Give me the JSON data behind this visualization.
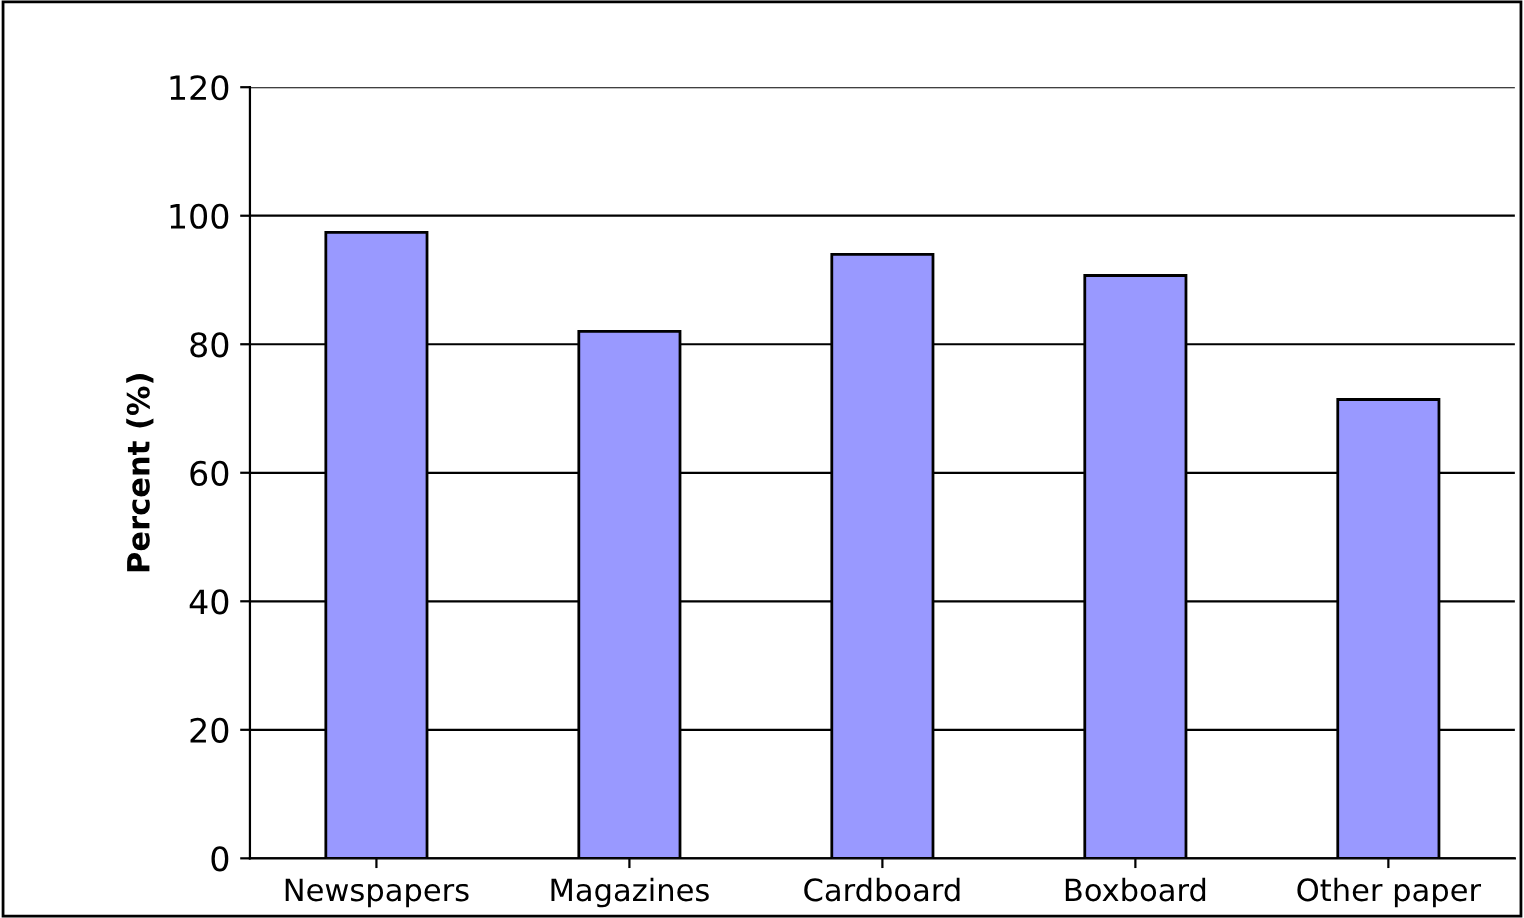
{
  "chart_data": {
    "type": "bar",
    "ylabel": "Percent (%)",
    "categories": [
      "Newspapers",
      "Magazines",
      "Cardboard",
      "Boxboard",
      "Other paper"
    ],
    "values": [
      97.4,
      82,
      94,
      90.7,
      71.4
    ],
    "color": "#9999ff",
    "ylim": [
      0,
      120
    ],
    "yticks": [
      0,
      20,
      40,
      60,
      80,
      100,
      120
    ],
    "grid": "y",
    "legend": false
  }
}
